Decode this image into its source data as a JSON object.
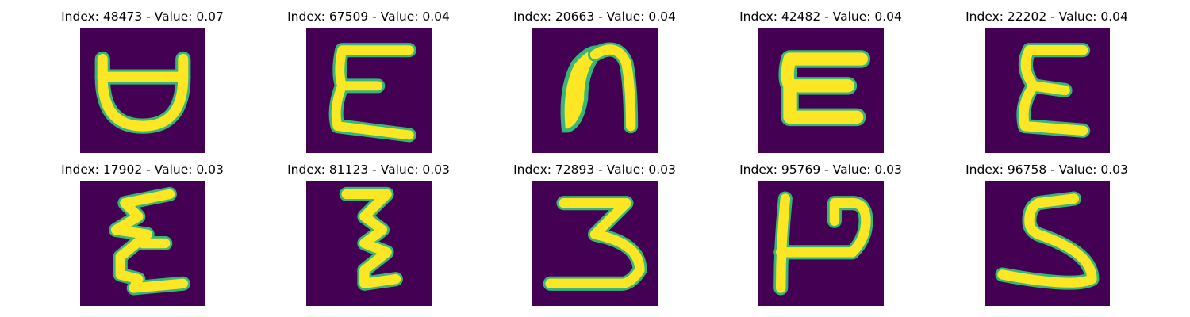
{
  "panels": [
    {
      "title": "Index: 48473 - Value: 0.07",
      "index": 48473,
      "value": 0.07,
      "glyph": "d-ring"
    },
    {
      "title": "Index: 67509 - Value: 0.04",
      "index": 67509,
      "value": 0.04,
      "glyph": "E"
    },
    {
      "title": "Index: 20663 - Value: 0.04",
      "index": 20663,
      "value": 0.04,
      "glyph": "n-blob"
    },
    {
      "title": "Index: 42482 - Value: 0.04",
      "index": 42482,
      "value": 0.04,
      "glyph": "C-flat"
    },
    {
      "title": "Index: 22202 - Value: 0.04",
      "index": 22202,
      "value": 0.04,
      "glyph": "epsilon"
    },
    {
      "title": "Index: 17902 - Value: 0.03",
      "index": 17902,
      "value": 0.03,
      "glyph": "E-zigzag"
    },
    {
      "title": "Index: 81123 - Value: 0.03",
      "index": 81123,
      "value": 0.03,
      "glyph": "Z-zigzag"
    },
    {
      "title": "Index: 72893 - Value: 0.03",
      "index": 72893,
      "value": 0.03,
      "glyph": "3"
    },
    {
      "title": "Index: 95769 - Value: 0.03",
      "index": 95769,
      "value": 0.03,
      "glyph": "P-flag"
    },
    {
      "title": "Index: 96758 - Value: 0.03",
      "index": 96758,
      "value": 0.03,
      "glyph": "S"
    }
  ],
  "colors": {
    "background": "#440154",
    "stroke": "#fde725",
    "edge": "#35b779"
  }
}
